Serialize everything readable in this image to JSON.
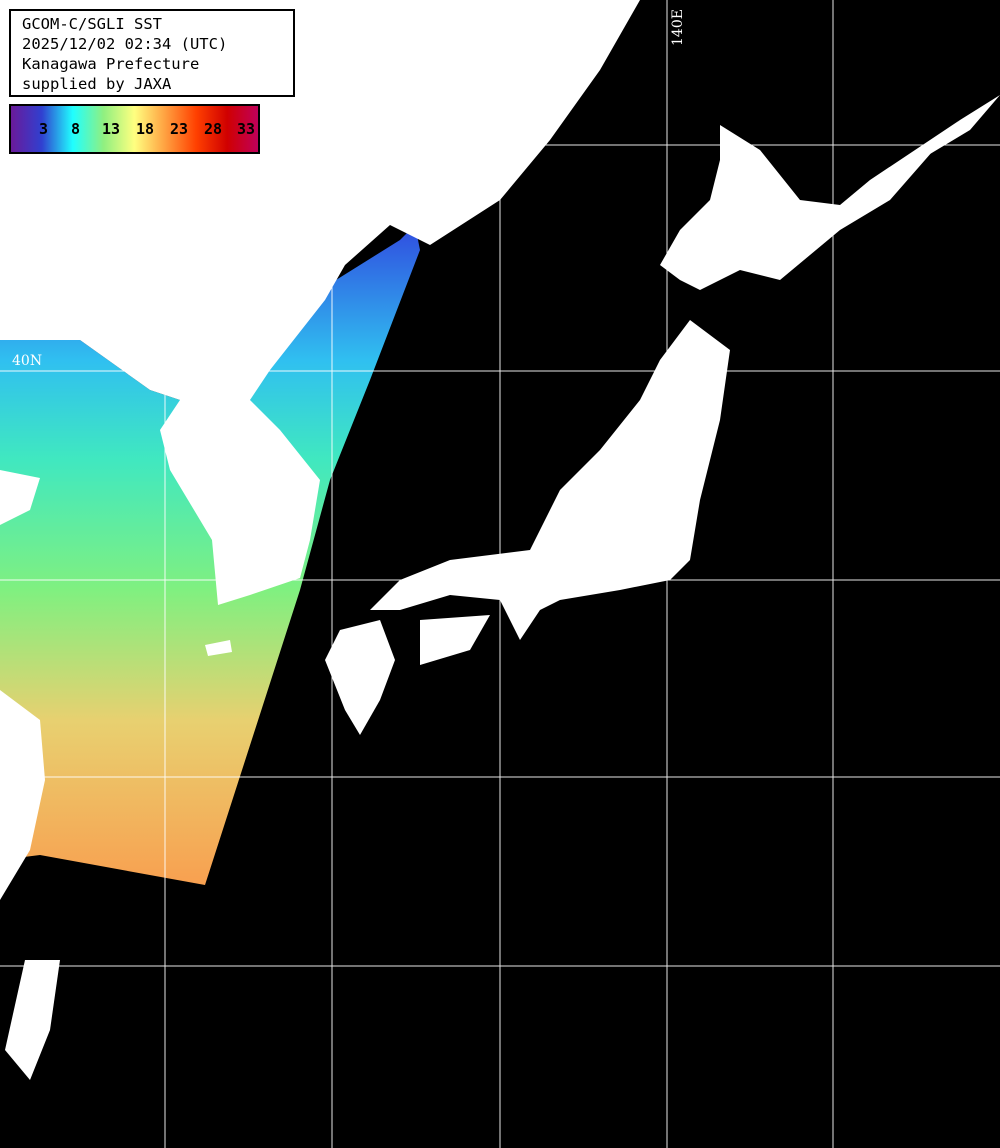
{
  "info": {
    "lines": [
      "GCOM-C/SGLI SST",
      "2025/12/02 02:34 (UTC)",
      "Kanagawa Prefecture",
      "supplied by JAXA"
    ]
  },
  "colorbar": {
    "labels": [
      "3",
      "8",
      "13",
      "18",
      "23",
      "28",
      "33"
    ],
    "colors": [
      "#6a1a9a",
      "#3040d0",
      "#20ffff",
      "#90f080",
      "#ffff80",
      "#ffa040",
      "#ff4000",
      "#d00000",
      "#c0005a"
    ]
  },
  "grid": {
    "lat_label": "40N",
    "lon_label": "140E"
  },
  "colors": {
    "land": "#ffffff",
    "no_data": "#000000",
    "grid": "#ffffff"
  }
}
